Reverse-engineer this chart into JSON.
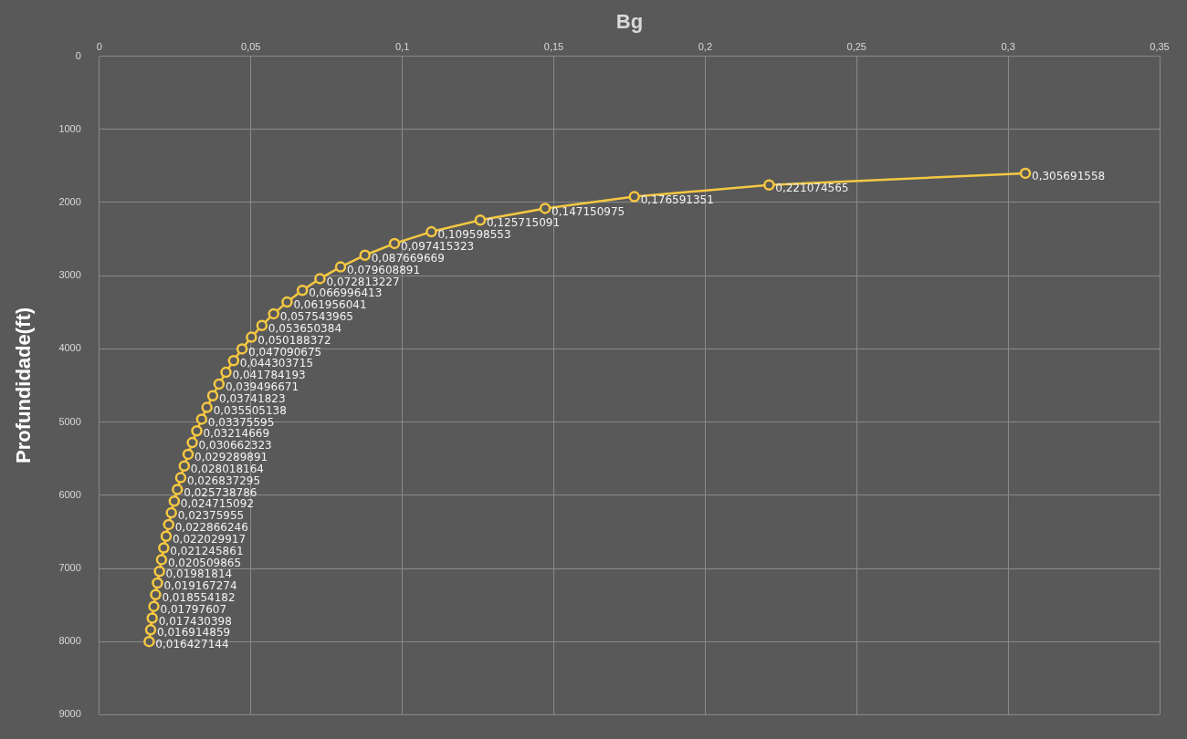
{
  "chart_data": {
    "type": "line",
    "xlabel": "Bg",
    "ylabel": "Profundidade(ft)",
    "x": [
      0.305691558,
      0.221074565,
      0.176591351,
      0.147150975,
      0.125715091,
      0.109598553,
      0.097415323,
      0.087669669,
      0.079608891,
      0.072813227,
      0.066996413,
      0.061956041,
      0.057543965,
      0.053650384,
      0.050188372,
      0.047090675,
      0.044303715,
      0.041784193,
      0.039496671,
      0.03741823,
      0.035505138,
      0.03375595,
      0.03214669,
      0.030662323,
      0.029289891,
      0.028018164,
      0.026837295,
      0.025738786,
      0.024715092,
      0.02375955,
      0.022866246,
      0.022029917,
      0.021245861,
      0.020509865,
      0.01981814,
      0.019167274,
      0.018554182,
      0.01797607,
      0.017430398,
      0.016914859,
      0.016427144
    ],
    "series": [
      {
        "color": "#f5c842",
        "values": [
          1600,
          1760,
          1920,
          2080,
          2240,
          2400,
          2560,
          2720,
          2880,
          3040,
          3200,
          3360,
          3520,
          3680,
          3840,
          4000,
          4160,
          4320,
          4480,
          4640,
          4800,
          4960,
          5120,
          5280,
          5440,
          5600,
          5760,
          5920,
          6080,
          6240,
          6400,
          6560,
          6720,
          6880,
          7040,
          7200,
          7360,
          7520,
          7680,
          7840,
          8000
        ]
      }
    ],
    "annotations": [
      {
        "text": "0,305691558",
        "x": 0.305691558,
        "y": 1600
      },
      {
        "text": "0,221074565",
        "x": 0.221074565,
        "y": 1760
      },
      {
        "text": "0,176591351",
        "x": 0.176591351,
        "y": 1920
      },
      {
        "text": "0,147150975",
        "x": 0.147150975,
        "y": 2080
      },
      {
        "text": "0,125715091",
        "x": 0.125715091,
        "y": 2240
      },
      {
        "text": "0,109598553",
        "x": 0.109598553,
        "y": 2400
      },
      {
        "text": "0,097415323",
        "x": 0.097415323,
        "y": 2560
      },
      {
        "text": "0,087669669",
        "x": 0.087669669,
        "y": 2720
      },
      {
        "text": "0,079608891",
        "x": 0.079608891,
        "y": 2880
      },
      {
        "text": "0,072813227",
        "x": 0.072813227,
        "y": 3040
      },
      {
        "text": "0,066996413",
        "x": 0.066996413,
        "y": 3200
      },
      {
        "text": "0,061956041",
        "x": 0.061956041,
        "y": 3360
      },
      {
        "text": "0,057543965",
        "x": 0.057543965,
        "y": 3520
      },
      {
        "text": "0,053650384",
        "x": 0.053650384,
        "y": 3680
      },
      {
        "text": "0,050188372",
        "x": 0.050188372,
        "y": 3840
      },
      {
        "text": "0,047090675",
        "x": 0.047090675,
        "y": 4000
      },
      {
        "text": "0,044303715",
        "x": 0.044303715,
        "y": 4160
      },
      {
        "text": "0,041784193",
        "x": 0.041784193,
        "y": 4320
      },
      {
        "text": "0,039496671",
        "x": 0.039496671,
        "y": 4480
      },
      {
        "text": "0,03741823",
        "x": 0.03741823,
        "y": 4640
      },
      {
        "text": "0,035505138",
        "x": 0.035505138,
        "y": 4800
      },
      {
        "text": "0,03375595",
        "x": 0.03375595,
        "y": 4960
      },
      {
        "text": "0,03214669",
        "x": 0.03214669,
        "y": 5120
      },
      {
        "text": "0,030662323",
        "x": 0.030662323,
        "y": 5280
      },
      {
        "text": "0,029289891",
        "x": 0.029289891,
        "y": 5440
      },
      {
        "text": "0,028018164",
        "x": 0.028018164,
        "y": 5600
      },
      {
        "text": "0,026837295",
        "x": 0.026837295,
        "y": 5760
      },
      {
        "text": "0,025738786",
        "x": 0.025738786,
        "y": 5920
      },
      {
        "text": "0,024715092",
        "x": 0.024715092,
        "y": 6080
      },
      {
        "text": "0,02375955",
        "x": 0.02375955,
        "y": 6240
      },
      {
        "text": "0,022866246",
        "x": 0.022866246,
        "y": 6400
      },
      {
        "text": "0,022029917",
        "x": 0.022029917,
        "y": 6560
      },
      {
        "text": "0,021245861",
        "x": 0.021245861,
        "y": 6720
      },
      {
        "text": "0,020509865",
        "x": 0.020509865,
        "y": 6880
      },
      {
        "text": "0,01981814",
        "x": 0.01981814,
        "y": 7040
      },
      {
        "text": "0,019167274",
        "x": 0.019167274,
        "y": 7200
      },
      {
        "text": "0,018554182",
        "x": 0.018554182,
        "y": 7360
      },
      {
        "text": "0,01797607",
        "x": 0.01797607,
        "y": 7520
      },
      {
        "text": "0,017430398",
        "x": 0.017430398,
        "y": 7680
      },
      {
        "text": "0,016914859",
        "x": 0.016914859,
        "y": 7840
      },
      {
        "text": "0,016427144",
        "x": 0.016427144,
        "y": 8000
      }
    ],
    "xlim": [
      0,
      0.35
    ],
    "xticks": [
      0,
      {
        "value": 0.05,
        "label": "0,05"
      },
      {
        "value": 0.1,
        "label": "0,1"
      },
      {
        "value": 0.15,
        "label": "0,15"
      },
      {
        "value": 0.2,
        "label": "0,2"
      },
      {
        "value": 0.25,
        "label": "0,25"
      },
      {
        "value": 0.3,
        "label": "0,3"
      },
      {
        "value": 0.35,
        "label": "0,35"
      }
    ],
    "ylim": [
      9000,
      0
    ],
    "yticks": [
      0,
      1000,
      2000,
      3000,
      4000,
      5000,
      6000,
      7000,
      8000,
      9000
    ],
    "grid": true,
    "legend": false,
    "marker": "circle",
    "line_style": "solid"
  }
}
